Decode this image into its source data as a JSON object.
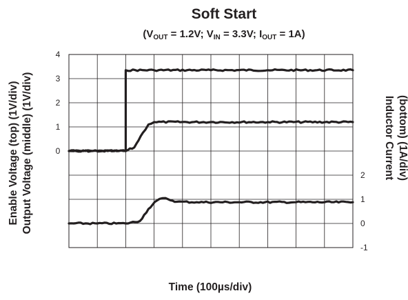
{
  "chart_data": {
    "type": "line",
    "title": "Soft Start",
    "subtitle_parts": [
      "(V",
      "OUT",
      " = 1.2V; V",
      "IN",
      " = 3.3V; I",
      "OUT",
      " = 1A)"
    ],
    "xlabel": "Time (100µs/div)",
    "ylabel_left": [
      "Enable Voltage (top) (1V/div)",
      "Output Voltage (middle) (1V/div)"
    ],
    "ylabel_right": [
      "Inductor Current",
      "(bottom) (1A/div)"
    ],
    "x_divisions": 10,
    "left_scale": {
      "ticks": [
        "4",
        "3",
        "2",
        "1",
        "0"
      ],
      "values": [
        4,
        3,
        2,
        1,
        0
      ]
    },
    "right_scale": {
      "ticks": [
        "2",
        "1",
        "0",
        "-1"
      ],
      "values": [
        2,
        1,
        0,
        -1
      ]
    },
    "series": [
      {
        "name": "Enable Voltage",
        "axis": "left",
        "x": [
          0,
          1.2,
          2.0,
          2.0,
          3.0,
          5.0,
          7.0,
          10.0
        ],
        "y": [
          0,
          0,
          0,
          3.35,
          3.35,
          3.35,
          3.35,
          3.35
        ]
      },
      {
        "name": "Output Voltage",
        "axis": "left",
        "x": [
          0,
          2.0,
          2.3,
          2.6,
          2.8,
          3.0,
          5.0,
          7.0,
          10.0
        ],
        "y": [
          0,
          0,
          0.15,
          0.75,
          1.1,
          1.2,
          1.2,
          1.2,
          1.2
        ]
      },
      {
        "name": "Inductor Current",
        "axis": "right",
        "x": [
          0,
          1.0,
          2.0,
          2.5,
          2.8,
          3.1,
          3.3,
          3.5,
          3.8,
          4.5,
          6.0,
          8.0,
          10.0
        ],
        "y": [
          0,
          0,
          0,
          0.1,
          0.6,
          0.95,
          1.05,
          1.0,
          0.9,
          0.88,
          0.88,
          0.88,
          0.88
        ]
      }
    ],
    "colors": {
      "trace": "#231f20",
      "grid": "#231f20",
      "background": "#ffffff"
    }
  }
}
